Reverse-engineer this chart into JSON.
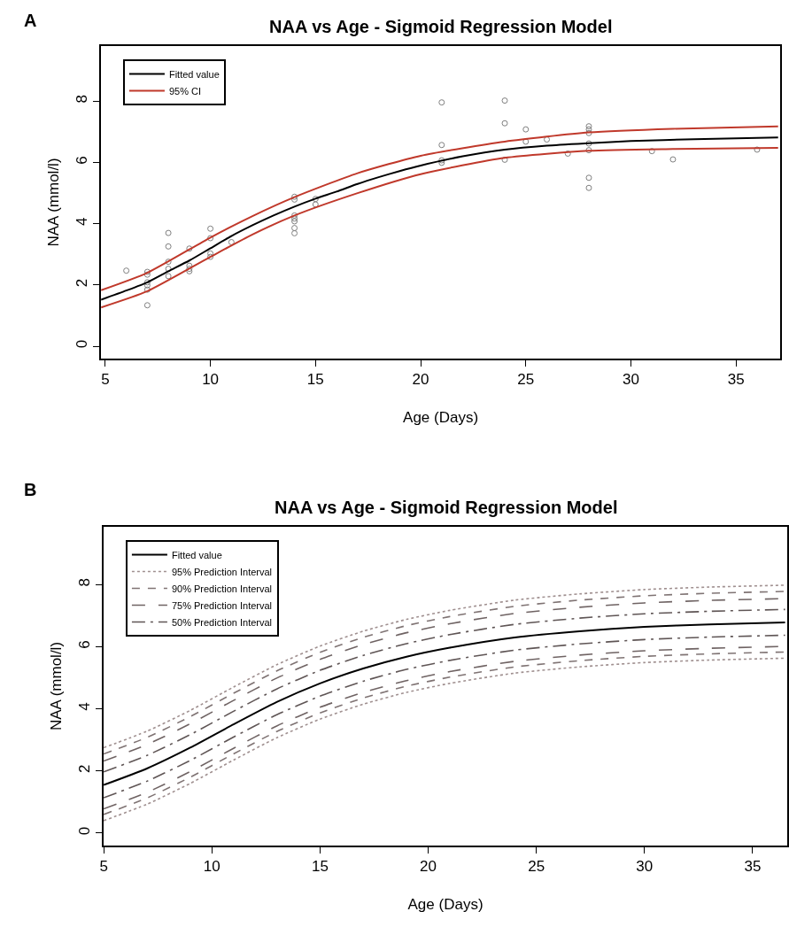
{
  "chart_data": [
    {
      "type": "line",
      "title": "NAA vs Age - Sigmoid Regression Model",
      "xlabel": "Age (Days)",
      "ylabel": "NAA (mmol/l)",
      "annotations": [
        "A"
      ],
      "xlim": [
        4.8,
        37.1
      ],
      "ylim": [
        -0.4,
        9.8
      ],
      "xticks": [
        5,
        10,
        15,
        20,
        25,
        30,
        35
      ],
      "yticks": [
        0,
        2,
        4,
        6,
        8
      ],
      "legend": "top left",
      "series": [
        {
          "type": "scatter",
          "color": "#808080",
          "marker": "circle",
          "x": [
            6,
            7,
            7,
            7,
            7,
            7,
            7,
            8,
            8,
            8,
            8,
            8,
            9,
            9,
            9,
            9,
            10,
            10,
            10,
            10,
            11,
            14,
            14,
            14,
            14,
            14,
            14,
            14,
            15,
            15,
            21,
            21,
            21,
            21,
            24,
            24,
            24,
            25,
            25,
            26,
            27,
            28,
            28,
            28,
            28,
            28,
            28,
            28,
            31,
            32,
            36
          ],
          "values": [
            2.47,
            2.43,
            2.34,
            2.09,
            1.99,
            1.85,
            1.34,
            3.7,
            3.26,
            2.76,
            2.53,
            2.29,
            3.19,
            2.63,
            2.53,
            2.45,
            3.84,
            3.53,
            3.03,
            2.92,
            3.4,
            4.88,
            4.79,
            4.27,
            4.17,
            4.08,
            3.86,
            3.69,
            4.81,
            4.63,
            7.96,
            6.57,
            6.07,
            5.99,
            8.02,
            7.28,
            6.09,
            7.08,
            6.68,
            6.75,
            6.29,
            7.18,
            7.08,
            6.96,
            6.62,
            6.4,
            5.5,
            5.17,
            6.37,
            6.1,
            6.42
          ]
        },
        {
          "name": "Fitted value",
          "color": "#000000",
          "line_style": "solid",
          "x": [
            4.8,
            6,
            7,
            8,
            9,
            10,
            11,
            12,
            13,
            14,
            15,
            16,
            17,
            18,
            19,
            20,
            22,
            24,
            26,
            28,
            30,
            33,
            37
          ],
          "values": [
            1.52,
            1.82,
            2.09,
            2.45,
            2.8,
            3.2,
            3.6,
            3.95,
            4.27,
            4.56,
            4.82,
            5.05,
            5.3,
            5.52,
            5.72,
            5.9,
            6.2,
            6.42,
            6.55,
            6.63,
            6.7,
            6.76,
            6.82
          ]
        },
        {
          "name": "95% CI",
          "color": "#c0392b",
          "line_style": "solid",
          "x": [
            4.8,
            7,
            10,
            12,
            14,
            17,
            20,
            24,
            28,
            32,
            37
          ],
          "values": [
            1.83,
            2.4,
            3.55,
            4.25,
            4.87,
            5.65,
            6.22,
            6.68,
            6.98,
            7.1,
            7.18
          ]
        },
        {
          "color": "#c0392b",
          "line_style": "solid",
          "x": [
            4.8,
            7,
            10,
            12,
            14,
            17,
            20,
            24,
            28,
            32,
            37
          ],
          "values": [
            1.27,
            1.8,
            2.92,
            3.65,
            4.27,
            5.0,
            5.62,
            6.15,
            6.38,
            6.44,
            6.48
          ]
        }
      ]
    },
    {
      "type": "line",
      "title": "NAA vs Age - Sigmoid Regression Model",
      "xlabel": "Age (Days)",
      "ylabel": "NAA (mmol/l)",
      "annotations": [
        "B"
      ],
      "xlim": [
        5,
        36.6
      ],
      "ylim": [
        -0.4,
        9.86
      ],
      "xticks": [
        5,
        10,
        15,
        20,
        25,
        30,
        35
      ],
      "yticks": [
        0,
        2,
        4,
        6,
        8
      ],
      "legend": "top left",
      "x": [
        5,
        7,
        9,
        11,
        13,
        15,
        17,
        19,
        21,
        24,
        27,
        30,
        33,
        36.5
      ],
      "series": [
        {
          "name": "Fitted value",
          "color": "#000000",
          "line_style": "solid",
          "values": [
            1.55,
            2.08,
            2.75,
            3.5,
            4.22,
            4.82,
            5.3,
            5.68,
            5.97,
            6.3,
            6.5,
            6.64,
            6.72,
            6.78
          ]
        },
        {
          "name": "95% Prediction Interval",
          "color": "#a09090",
          "line_style": "dotted",
          "values": [
            2.75,
            3.28,
            3.95,
            4.7,
            5.42,
            6.02,
            6.5,
            6.88,
            7.17,
            7.5,
            7.7,
            7.84,
            7.92,
            7.98
          ]
        },
        {
          "color": "#a09090",
          "line_style": "dotted",
          "values": [
            0.4,
            0.93,
            1.6,
            2.35,
            3.07,
            3.67,
            4.15,
            4.53,
            4.82,
            5.15,
            5.35,
            5.49,
            5.57,
            5.63
          ]
        },
        {
          "name": "90% Prediction Interval",
          "color": "#7f7373",
          "line_style": "dashed",
          "values": [
            2.55,
            3.08,
            3.75,
            4.5,
            5.22,
            5.82,
            6.3,
            6.68,
            6.97,
            7.3,
            7.5,
            7.64,
            7.72,
            7.78
          ]
        },
        {
          "color": "#7f7373",
          "line_style": "dashed",
          "values": [
            0.6,
            1.13,
            1.8,
            2.55,
            3.27,
            3.87,
            4.35,
            4.73,
            5.02,
            5.35,
            5.55,
            5.69,
            5.77,
            5.83
          ]
        },
        {
          "name": "75% Prediction Interval",
          "color": "#6f6363",
          "line_style": "longdash",
          "values": [
            2.32,
            2.85,
            3.52,
            4.27,
            4.99,
            5.59,
            6.07,
            6.45,
            6.74,
            7.07,
            7.27,
            7.41,
            7.49,
            7.55
          ]
        },
        {
          "color": "#6f6363",
          "line_style": "longdash",
          "values": [
            0.78,
            1.31,
            1.98,
            2.73,
            3.45,
            4.05,
            4.53,
            4.91,
            5.2,
            5.53,
            5.73,
            5.87,
            5.95,
            6.01
          ]
        },
        {
          "name": "50% Prediction Interval",
          "color": "#5f5555",
          "line_style": "longdashdot",
          "values": [
            1.97,
            2.5,
            3.17,
            3.92,
            4.64,
            5.24,
            5.72,
            6.1,
            6.39,
            6.72,
            6.92,
            7.06,
            7.14,
            7.2
          ]
        },
        {
          "color": "#5f5555",
          "line_style": "longdashdot",
          "values": [
            1.14,
            1.67,
            2.34,
            3.09,
            3.81,
            4.41,
            4.89,
            5.27,
            5.56,
            5.89,
            6.09,
            6.23,
            6.31,
            6.37
          ]
        }
      ]
    }
  ]
}
